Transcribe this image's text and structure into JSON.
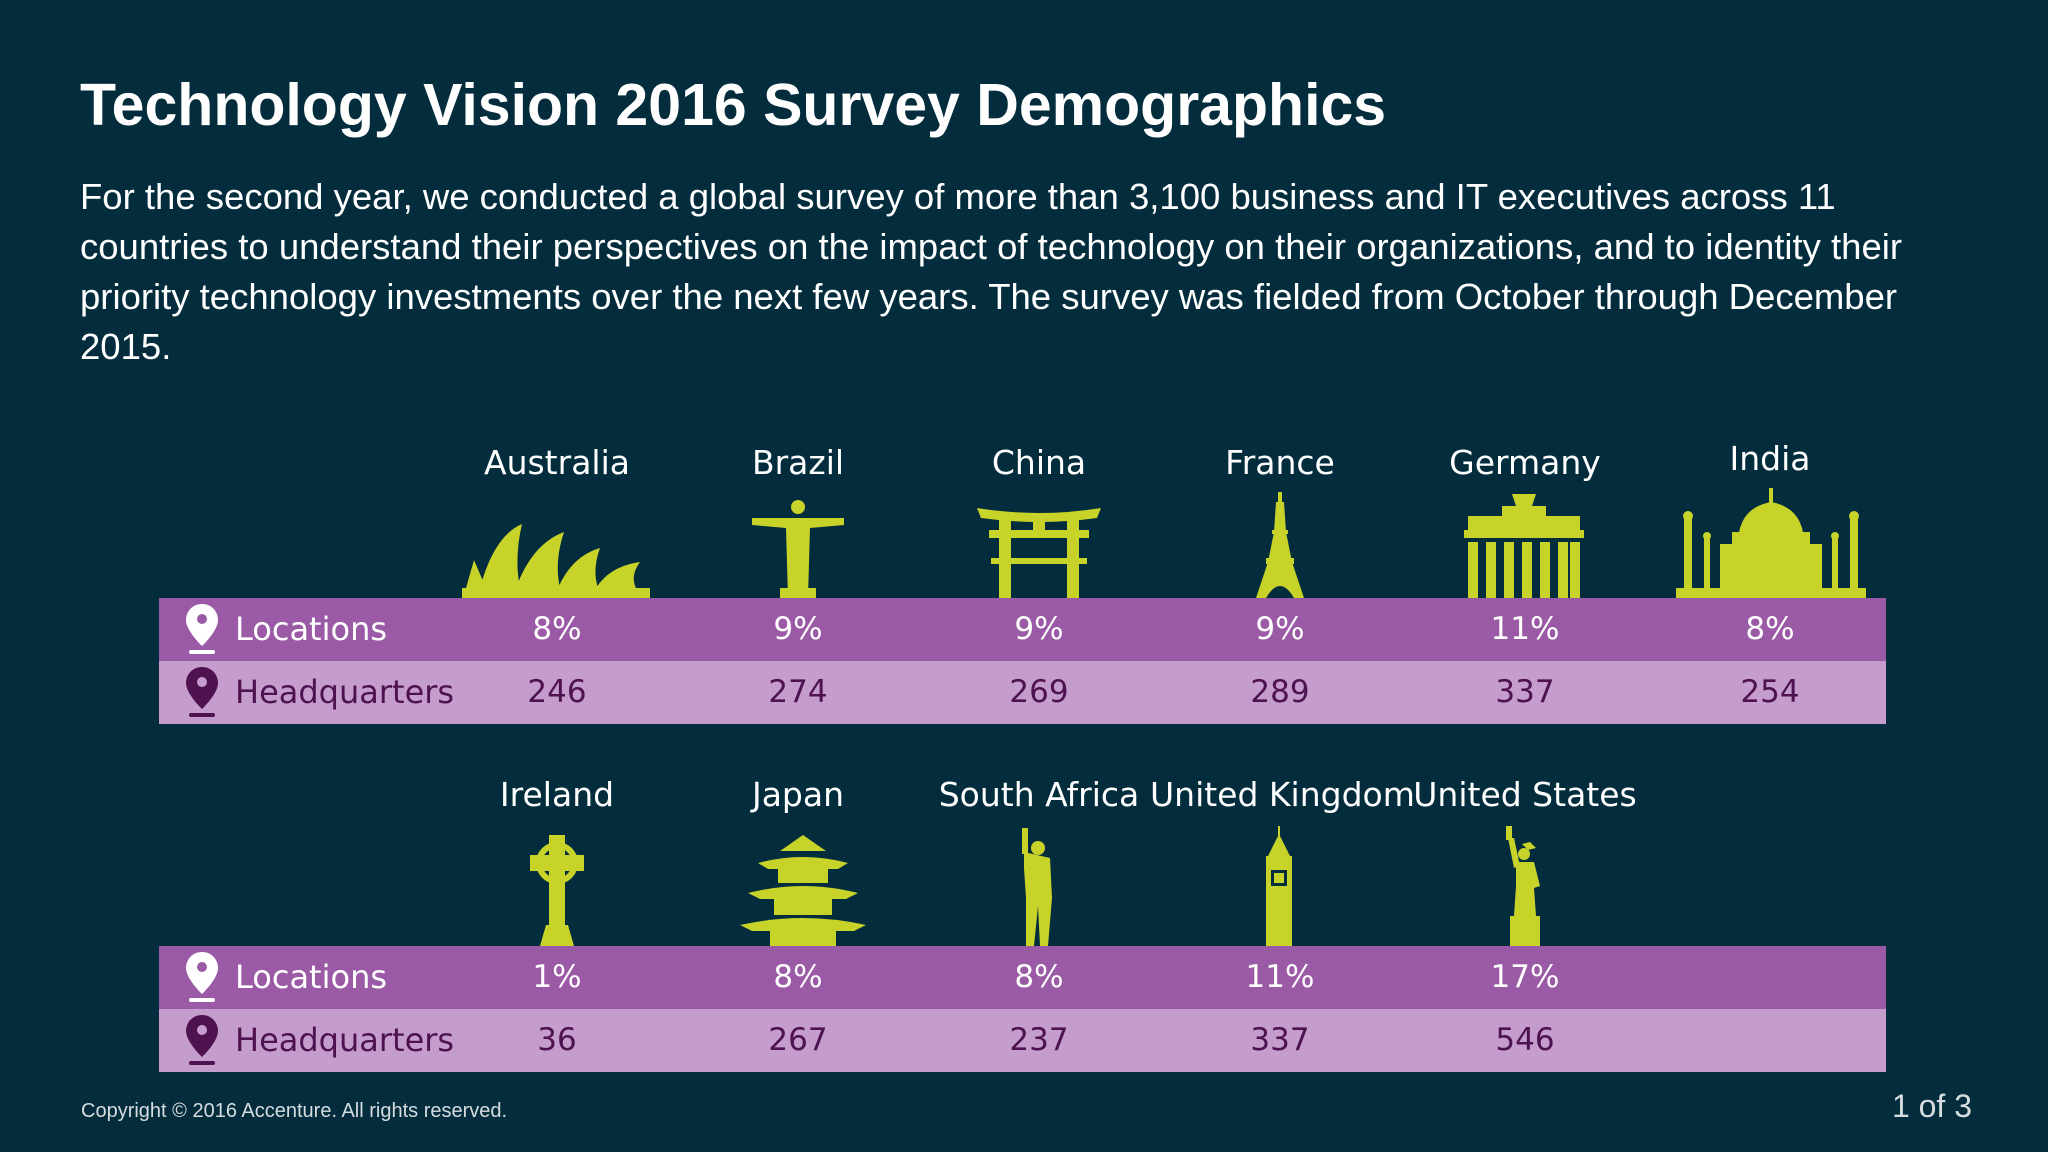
{
  "title": "Technology Vision 2016 Survey Demographics",
  "intro": "For the second year, we conducted a global survey of more than 3,100 business and IT executives across 11 countries to understand their perspectives on the impact of technology on their organizations, and to identity their priority technology investments over the next few years. The survey was fielded from October through December 2015.",
  "row_labels": {
    "locations": "Locations",
    "headquarters": "Headquarters"
  },
  "colors": {
    "background": "#032d3c",
    "icon": "#c8d32a",
    "locations_row": "#9b5aa6",
    "headquarters_row": "#c59dcc",
    "hq_text": "#4f1250"
  },
  "groups": [
    {
      "countries": [
        {
          "name": "Australia",
          "icon": "sydney-opera-house-icon",
          "locations": "8%",
          "headquarters": "246"
        },
        {
          "name": "Brazil",
          "icon": "christ-the-redeemer-icon",
          "locations": "9%",
          "headquarters": "274"
        },
        {
          "name": "China",
          "icon": "torii-gate-icon",
          "locations": "9%",
          "headquarters": "269"
        },
        {
          "name": "France",
          "icon": "eiffel-tower-icon",
          "locations": "9%",
          "headquarters": "289"
        },
        {
          "name": "Germany",
          "icon": "brandenburg-gate-icon",
          "locations": "11%",
          "headquarters": "337"
        },
        {
          "name": "India",
          "icon": "taj-mahal-icon",
          "locations": "8%",
          "headquarters": "254"
        }
      ]
    },
    {
      "countries": [
        {
          "name": "Ireland",
          "icon": "celtic-cross-icon",
          "locations": "1%",
          "headquarters": "36"
        },
        {
          "name": "Japan",
          "icon": "pagoda-icon",
          "locations": "8%",
          "headquarters": "267"
        },
        {
          "name": "South Africa",
          "icon": "mandela-statue-icon",
          "locations": "8%",
          "headquarters": "237"
        },
        {
          "name": "United Kingdom",
          "icon": "big-ben-icon",
          "locations": "11%",
          "headquarters": "337"
        },
        {
          "name": "United States",
          "icon": "statue-of-liberty-icon",
          "locations": "17%",
          "headquarters": "546"
        }
      ]
    }
  ],
  "footer": {
    "copyright": "Copyright © 2016 Accenture. All rights reserved.",
    "page": "1 of 3"
  }
}
